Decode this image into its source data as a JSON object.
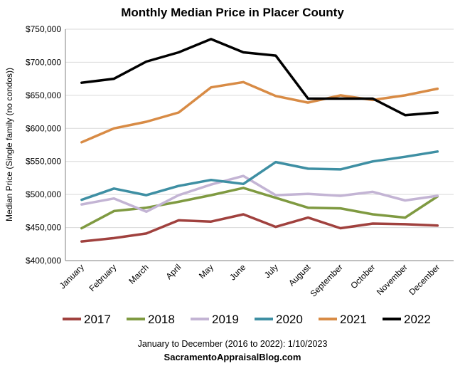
{
  "chart_data": {
    "type": "line",
    "title": "Monthly Median Price in Placer County",
    "xlabel": "",
    "ylabel": "Median Price (Single family (no condos))",
    "ylim": [
      400000,
      750000
    ],
    "yticks": [
      400000,
      450000,
      500000,
      550000,
      600000,
      650000,
      700000,
      750000
    ],
    "ytick_labels": [
      "$400,000",
      "$450,000",
      "$500,000",
      "$550,000",
      "$600,000",
      "$650,000",
      "$700,000",
      "$750,000"
    ],
    "categories": [
      "January",
      "February",
      "March",
      "April",
      "May",
      "June",
      "July",
      "August",
      "September",
      "October",
      "November",
      "December"
    ],
    "grid": true,
    "legend_position": "bottom",
    "series": [
      {
        "name": "2017",
        "color": "#a0413e",
        "values": [
          429000,
          434000,
          441000,
          461000,
          459000,
          470000,
          451000,
          465000,
          449000,
          456000,
          455000,
          453000
        ]
      },
      {
        "name": "2018",
        "color": "#7f9a41",
        "values": [
          449000,
          475000,
          480000,
          489000,
          499000,
          510000,
          495000,
          480000,
          479000,
          470000,
          465000,
          497000
        ]
      },
      {
        "name": "2019",
        "color": "#c3b4d4",
        "values": [
          485000,
          494000,
          474000,
          499000,
          515000,
          528000,
          499000,
          501000,
          498000,
          504000,
          491000,
          498000
        ]
      },
      {
        "name": "2020",
        "color": "#3e8fa3",
        "values": [
          492000,
          509000,
          499000,
          513000,
          522000,
          516000,
          549000,
          539000,
          538000,
          550000,
          557000,
          565000
        ]
      },
      {
        "name": "2021",
        "color": "#d88b45",
        "values": [
          579000,
          600000,
          610000,
          624000,
          662000,
          670000,
          649000,
          639000,
          650000,
          643000,
          650000,
          660000
        ]
      },
      {
        "name": "2022",
        "color": "#000000",
        "values": [
          669000,
          675000,
          701000,
          715000,
          735000,
          715000,
          710000,
          645000,
          645000,
          645000,
          620000,
          624000
        ]
      }
    ]
  },
  "footnote": "January to December (2016 to 2022): 1/10/2023",
  "site": "SacramentoAppraisalBlog.com"
}
